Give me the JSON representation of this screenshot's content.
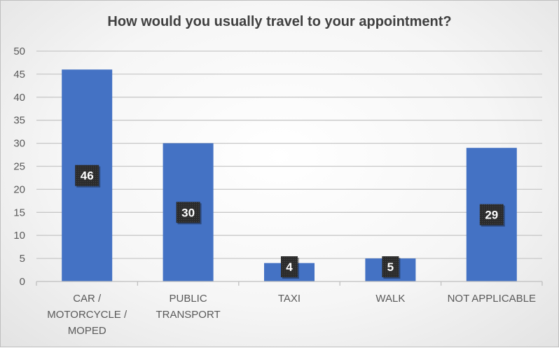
{
  "chart_data": {
    "type": "bar",
    "title": "How would you usually travel to your appointment?",
    "categories": [
      [
        "CAR /",
        "MOTORCYCLE /",
        "MOPED"
      ],
      [
        "PUBLIC",
        "TRANSPORT"
      ],
      [
        "TAXI"
      ],
      [
        "WALK"
      ],
      [
        "NOT APPLICABLE"
      ]
    ],
    "values": [
      46,
      30,
      4,
      5,
      29
    ],
    "ylim": [
      0,
      50
    ],
    "yticks": [
      0,
      5,
      10,
      15,
      20,
      25,
      30,
      35,
      40,
      45,
      50
    ],
    "xlabel": "",
    "ylabel": "",
    "grid": true,
    "legend": "none",
    "data_labels": true,
    "colors": {
      "bar": "#4472c4",
      "label_box": "#2b2b2b",
      "grid": "#c8c8c8",
      "axis_text": "#595959",
      "title": "#404040"
    }
  }
}
